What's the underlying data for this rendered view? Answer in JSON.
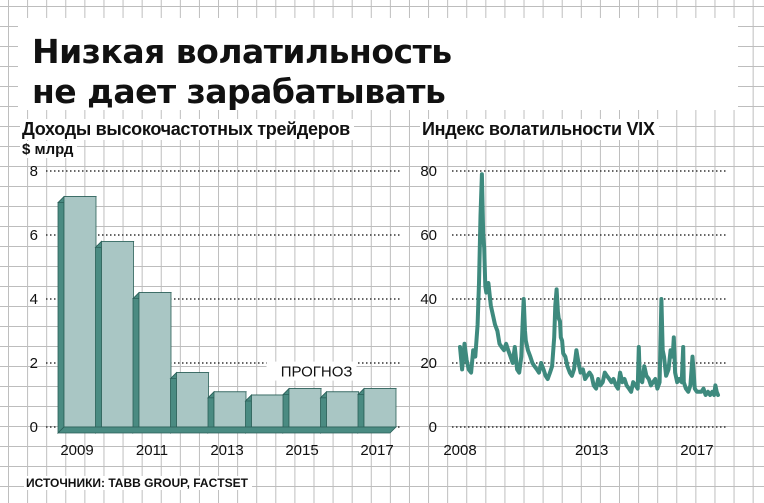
{
  "header": {
    "title_line_1": "Низкая волатильность",
    "title_line_2": "не дает зарабатывать"
  },
  "source": "ИСТОЧНИКИ: TABB GROUP, FACTSET",
  "colors": {
    "bar_face": "#a9c6c4",
    "bar_side": "#4a8b82",
    "bar_stroke": "#2a5f58",
    "line": "#3e8a7e",
    "gridline_dotted": "#333333"
  },
  "chart_data": [
    {
      "type": "bar",
      "title": "Доходы высокочастотных трейдеров",
      "unit": "$ млрд",
      "categories": [
        "2009",
        "2010",
        "2011",
        "2012",
        "2013",
        "2014",
        "2015",
        "2016",
        "2017"
      ],
      "values": [
        7.2,
        5.8,
        4.2,
        1.7,
        1.1,
        1.0,
        1.2,
        1.1,
        1.2
      ],
      "x_tick_labels": [
        "2009",
        "2011",
        "2013",
        "2015",
        "2017"
      ],
      "y_ticks": [
        0,
        2,
        4,
        6,
        8
      ],
      "ylim": [
        0,
        8
      ],
      "annotation": "ПРОГНОЗ",
      "grid": true
    },
    {
      "type": "line",
      "title": "Индекс волатильности VIX",
      "x_tick_labels": [
        "2008",
        "2013",
        "2017"
      ],
      "y_ticks": [
        0,
        20,
        40,
        60,
        80
      ],
      "ylim": [
        0,
        80
      ],
      "xlim": [
        2008.0,
        2017.8
      ],
      "series": [
        {
          "x": [
            2008.0,
            2008.08,
            2008.17,
            2008.25,
            2008.33,
            2008.42,
            2008.5,
            2008.58,
            2008.67,
            2008.72,
            2008.78,
            2008.83,
            2008.88,
            2008.92,
            2008.96,
            2009.0,
            2009.08,
            2009.17,
            2009.25,
            2009.33,
            2009.42,
            2009.5,
            2009.58,
            2009.67,
            2009.75,
            2009.83,
            2009.92,
            2010.0,
            2010.08,
            2010.17,
            2010.25,
            2010.33,
            2010.38,
            2010.42,
            2010.47,
            2010.5,
            2010.58,
            2010.67,
            2010.75,
            2010.83,
            2010.92,
            2011.0,
            2011.08,
            2011.17,
            2011.25,
            2011.33,
            2011.42,
            2011.5,
            2011.58,
            2011.62,
            2011.67,
            2011.72,
            2011.75,
            2011.8,
            2011.83,
            2011.88,
            2011.92,
            2012.0,
            2012.08,
            2012.17,
            2012.25,
            2012.33,
            2012.42,
            2012.5,
            2012.58,
            2012.67,
            2012.75,
            2012.83,
            2012.92,
            2013.0,
            2013.08,
            2013.17,
            2013.25,
            2013.33,
            2013.42,
            2013.5,
            2013.58,
            2013.67,
            2013.75,
            2013.83,
            2013.92,
            2014.0,
            2014.08,
            2014.17,
            2014.25,
            2014.33,
            2014.42,
            2014.5,
            2014.58,
            2014.67,
            2014.75,
            2014.79,
            2014.83,
            2014.92,
            2015.0,
            2015.08,
            2015.17,
            2015.25,
            2015.33,
            2015.42,
            2015.5,
            2015.58,
            2015.62,
            2015.65,
            2015.7,
            2015.75,
            2015.83,
            2015.92,
            2016.0,
            2016.08,
            2016.12,
            2016.17,
            2016.25,
            2016.33,
            2016.42,
            2016.48,
            2016.5,
            2016.58,
            2016.67,
            2016.75,
            2016.83,
            2016.92,
            2017.0,
            2017.08,
            2017.17,
            2017.25,
            2017.33,
            2017.42,
            2017.5,
            2017.58,
            2017.65,
            2017.7,
            2017.75,
            2017.8
          ],
          "values": [
            25,
            18,
            26,
            21,
            18,
            17,
            24,
            22,
            32,
            45,
            66,
            79,
            60,
            56,
            44,
            42,
            45,
            38,
            35,
            32,
            30,
            26,
            25,
            24,
            26,
            24,
            22,
            20,
            25,
            18,
            17,
            22,
            33,
            40,
            30,
            27,
            24,
            22,
            20,
            19,
            18,
            17,
            20,
            18,
            16,
            15,
            17,
            19,
            28,
            38,
            43,
            36,
            34,
            33,
            28,
            27,
            23,
            22,
            19,
            17,
            16,
            18,
            24,
            20,
            17,
            18,
            15,
            16,
            17,
            16,
            13,
            12,
            15,
            13,
            14,
            17,
            16,
            15,
            14,
            15,
            13,
            12,
            17,
            14,
            15,
            13,
            12,
            11,
            14,
            13,
            12,
            25,
            15,
            14,
            19,
            16,
            15,
            13,
            14,
            15,
            12,
            14,
            28,
            40,
            24,
            22,
            16,
            18,
            24,
            22,
            28,
            17,
            14,
            15,
            14,
            25,
            14,
            12,
            11,
            13,
            22,
            12,
            11,
            11,
            11,
            12,
            10,
            11,
            10,
            11,
            10,
            13,
            11,
            10
          ]
        }
      ],
      "grid": true
    }
  ]
}
